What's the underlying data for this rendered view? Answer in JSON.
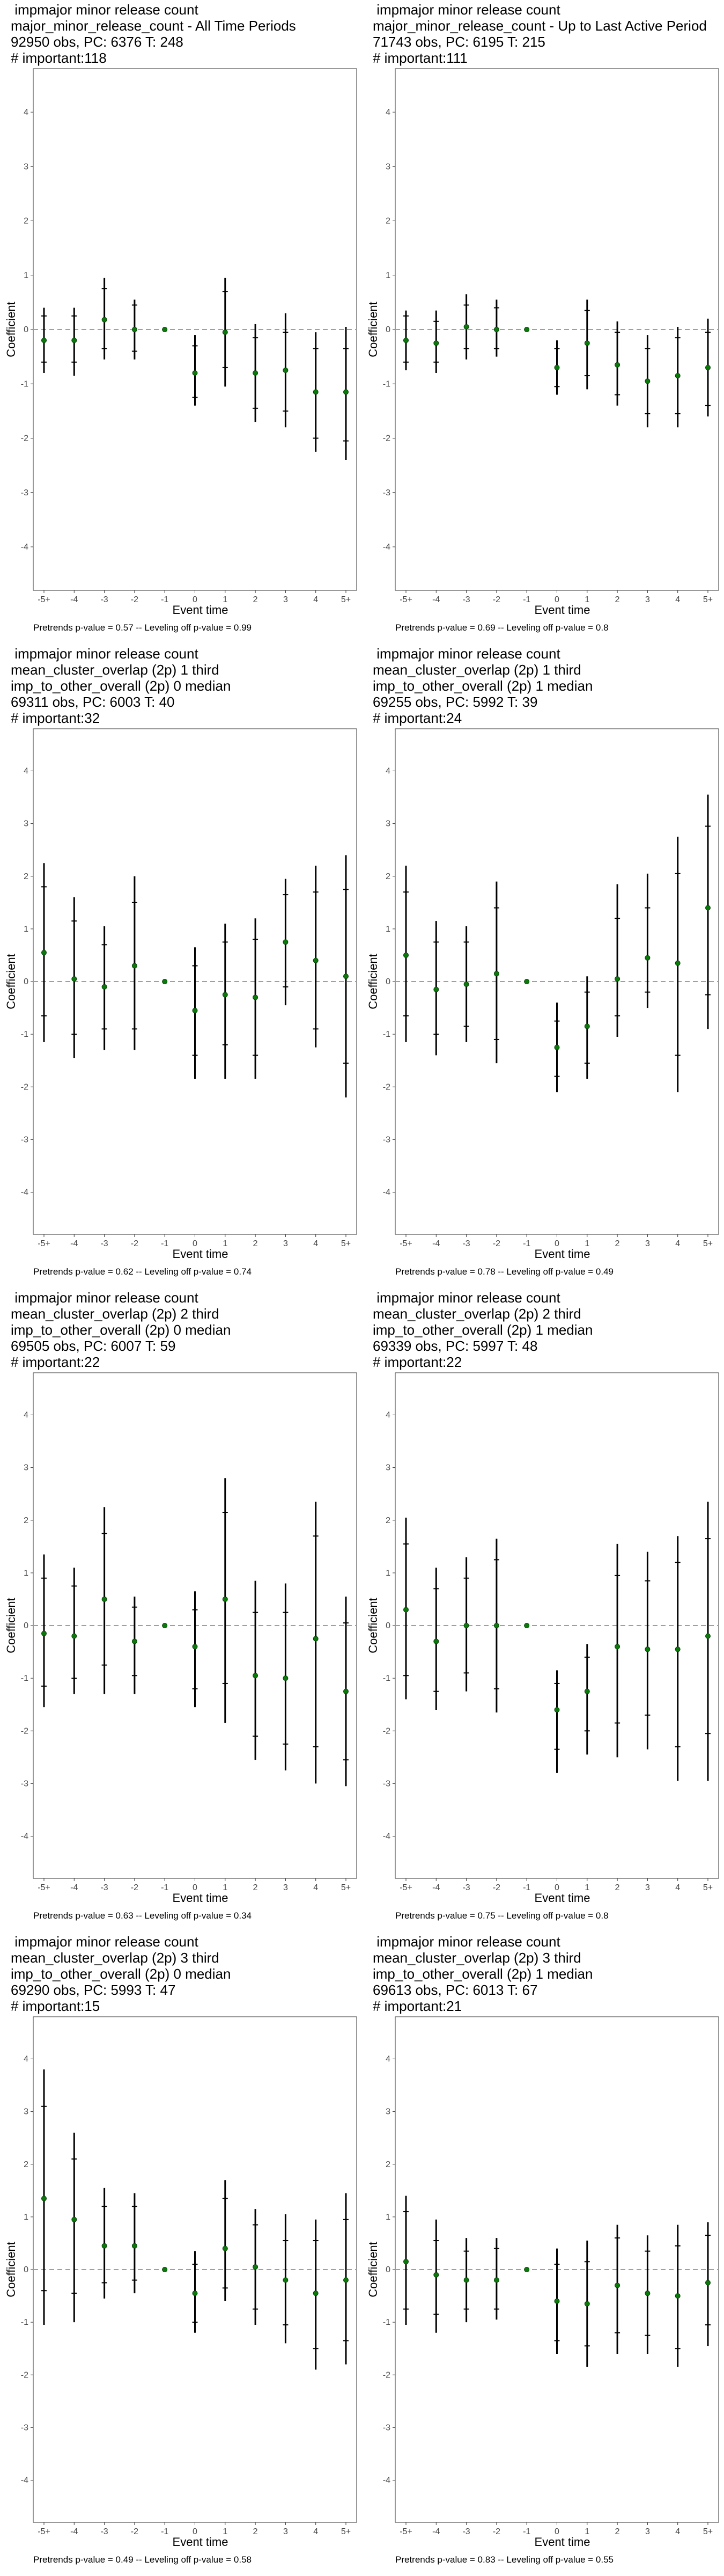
{
  "footer_template": "Pretrends p-value = {pre} -- Leveling off p-value = {lev}",
  "chart_data": [
    {
      "type": "scatter",
      "title_lines": [
        " impmajor minor release count",
        "major_minor_release_count - All Time Periods",
        "92950 obs, PC: 6376 T: 248",
        "# important:118"
      ],
      "xlabel": "Event time",
      "ylabel": "Coefficient",
      "categories": [
        "-5+",
        "-4",
        "-3",
        "-2",
        "-1",
        "0",
        "1",
        "2",
        "3",
        "4",
        "5+"
      ],
      "yticks": [
        -4,
        -3,
        -2,
        -1,
        0,
        1,
        2,
        3,
        4
      ],
      "ylim": [
        -4.8,
        4.8
      ],
      "estimate": [
        -0.2,
        -0.2,
        0.18,
        0.0,
        0.0,
        -0.8,
        -0.05,
        -0.8,
        -0.75,
        -1.15,
        -1.15
      ],
      "ci_outer": [
        [
          -0.8,
          0.4
        ],
        [
          -0.85,
          0.4
        ],
        [
          -0.55,
          0.95
        ],
        [
          -0.55,
          0.55
        ],
        [
          0.0,
          0.0
        ],
        [
          -1.4,
          -0.1
        ],
        [
          -1.05,
          0.95
        ],
        [
          -1.7,
          0.1
        ],
        [
          -1.8,
          0.3
        ],
        [
          -2.25,
          -0.05
        ],
        [
          -2.4,
          0.05
        ]
      ],
      "ci_inner": [
        [
          -0.6,
          0.25
        ],
        [
          -0.6,
          0.25
        ],
        [
          -0.35,
          0.75
        ],
        [
          -0.4,
          0.45
        ],
        [
          0.0,
          0.0
        ],
        [
          -1.25,
          -0.3
        ],
        [
          -0.7,
          0.7
        ],
        [
          -1.45,
          -0.15
        ],
        [
          -1.5,
          -0.05
        ],
        [
          -2.0,
          -0.35
        ],
        [
          -2.05,
          -0.35
        ]
      ],
      "pretrends_p": "0.57",
      "leveling_p": "0.99"
    },
    {
      "type": "scatter",
      "title_lines": [
        " impmajor minor release count",
        "major_minor_release_count - Up to Last Active Period",
        "71743 obs, PC: 6195 T: 215",
        "# important:111"
      ],
      "xlabel": "Event time",
      "ylabel": "Coefficient",
      "categories": [
        "-5+",
        "-4",
        "-3",
        "-2",
        "-1",
        "0",
        "1",
        "2",
        "3",
        "4",
        "5+"
      ],
      "yticks": [
        -4,
        -3,
        -2,
        -1,
        0,
        1,
        2,
        3,
        4
      ],
      "ylim": [
        -4.8,
        4.8
      ],
      "estimate": [
        -0.2,
        -0.25,
        0.05,
        0.0,
        0.0,
        -0.7,
        -0.25,
        -0.65,
        -0.95,
        -0.85,
        -0.7
      ],
      "ci_outer": [
        [
          -0.75,
          0.35
        ],
        [
          -0.8,
          0.35
        ],
        [
          -0.55,
          0.65
        ],
        [
          -0.5,
          0.55
        ],
        [
          0.0,
          0.0
        ],
        [
          -1.2,
          -0.2
        ],
        [
          -1.1,
          0.55
        ],
        [
          -1.4,
          0.15
        ],
        [
          -1.8,
          -0.1
        ],
        [
          -1.8,
          0.05
        ],
        [
          -1.6,
          0.2
        ]
      ],
      "ci_inner": [
        [
          -0.6,
          0.25
        ],
        [
          -0.6,
          0.15
        ],
        [
          -0.35,
          0.45
        ],
        [
          -0.35,
          0.4
        ],
        [
          0.0,
          0.0
        ],
        [
          -1.05,
          -0.35
        ],
        [
          -0.85,
          0.35
        ],
        [
          -1.2,
          -0.05
        ],
        [
          -1.55,
          -0.35
        ],
        [
          -1.55,
          -0.15
        ],
        [
          -1.4,
          -0.05
        ]
      ],
      "pretrends_p": "0.69",
      "leveling_p": "0.8"
    },
    {
      "type": "scatter",
      "title_lines": [
        " impmajor minor release count",
        "mean_cluster_overlap (2p) 1 third",
        "imp_to_other_overall (2p) 0 median",
        "69311 obs, PC: 6003 T: 40",
        "# important:32"
      ],
      "xlabel": "Event time",
      "ylabel": "Coefficient",
      "categories": [
        "-5+",
        "-4",
        "-3",
        "-2",
        "-1",
        "0",
        "1",
        "2",
        "3",
        "4",
        "5+"
      ],
      "yticks": [
        -4,
        -3,
        -2,
        -1,
        0,
        1,
        2,
        3,
        4
      ],
      "ylim": [
        -4.8,
        4.8
      ],
      "estimate": [
        0.55,
        0.05,
        -0.1,
        0.3,
        0.0,
        -0.55,
        -0.25,
        -0.3,
        0.75,
        0.4,
        0.1
      ],
      "ci_outer": [
        [
          -1.15,
          2.25
        ],
        [
          -1.45,
          1.6
        ],
        [
          -1.3,
          1.05
        ],
        [
          -1.3,
          2.0
        ],
        [
          0.0,
          0.0
        ],
        [
          -1.85,
          0.65
        ],
        [
          -1.85,
          1.1
        ],
        [
          -1.85,
          1.2
        ],
        [
          -0.45,
          1.95
        ],
        [
          -1.25,
          2.2
        ],
        [
          -2.2,
          2.4
        ]
      ],
      "ci_inner": [
        [
          -0.65,
          1.8
        ],
        [
          -1.0,
          1.15
        ],
        [
          -0.9,
          0.7
        ],
        [
          -0.9,
          1.5
        ],
        [
          0.0,
          0.0
        ],
        [
          -1.4,
          0.3
        ],
        [
          -1.2,
          0.75
        ],
        [
          -1.4,
          0.8
        ],
        [
          -0.1,
          1.65
        ],
        [
          -0.9,
          1.7
        ],
        [
          -1.55,
          1.75
        ]
      ],
      "pretrends_p": "0.62",
      "leveling_p": "0.74"
    },
    {
      "type": "scatter",
      "title_lines": [
        " impmajor minor release count",
        "mean_cluster_overlap (2p) 1 third",
        "imp_to_other_overall (2p) 1 median",
        "69255 obs, PC: 5992 T: 39",
        "# important:24"
      ],
      "xlabel": "Event time",
      "ylabel": "Coefficient",
      "categories": [
        "-5+",
        "-4",
        "-3",
        "-2",
        "-1",
        "0",
        "1",
        "2",
        "3",
        "4",
        "5+"
      ],
      "yticks": [
        -4,
        -3,
        -2,
        -1,
        0,
        1,
        2,
        3,
        4
      ],
      "ylim": [
        -4.8,
        4.8
      ],
      "estimate": [
        0.5,
        -0.15,
        -0.05,
        0.15,
        0.0,
        -1.25,
        -0.85,
        0.05,
        0.45,
        0.35,
        1.4
      ],
      "ci_outer": [
        [
          -1.15,
          2.2
        ],
        [
          -1.4,
          1.15
        ],
        [
          -1.15,
          1.05
        ],
        [
          -1.55,
          1.9
        ],
        [
          0.0,
          0.0
        ],
        [
          -2.1,
          -0.4
        ],
        [
          -1.85,
          0.1
        ],
        [
          -1.05,
          1.85
        ],
        [
          -0.5,
          2.05
        ],
        [
          -2.1,
          2.75
        ],
        [
          -0.9,
          3.55
        ]
      ],
      "ci_inner": [
        [
          -0.65,
          1.7
        ],
        [
          -1.0,
          0.75
        ],
        [
          -0.85,
          0.75
        ],
        [
          -1.1,
          1.4
        ],
        [
          0.0,
          0.0
        ],
        [
          -1.8,
          -0.75
        ],
        [
          -1.55,
          -0.2
        ],
        [
          -0.65,
          1.2
        ],
        [
          -0.2,
          1.4
        ],
        [
          -1.4,
          2.05
        ],
        [
          -0.25,
          2.95
        ]
      ],
      "pretrends_p": "0.78",
      "leveling_p": "0.49"
    },
    {
      "type": "scatter",
      "title_lines": [
        " impmajor minor release count",
        "mean_cluster_overlap (2p) 2 third",
        "imp_to_other_overall (2p) 0 median",
        "69505 obs, PC: 6007 T: 59",
        "# important:22"
      ],
      "xlabel": "Event time",
      "ylabel": "Coefficient",
      "categories": [
        "-5+",
        "-4",
        "-3",
        "-2",
        "-1",
        "0",
        "1",
        "2",
        "3",
        "4",
        "5+"
      ],
      "yticks": [
        -4,
        -3,
        -2,
        -1,
        0,
        1,
        2,
        3,
        4
      ],
      "ylim": [
        -4.8,
        4.8
      ],
      "estimate": [
        -0.15,
        -0.2,
        0.5,
        -0.3,
        0.0,
        -0.4,
        0.5,
        -0.95,
        -1.0,
        -0.25,
        -1.25
      ],
      "ci_outer": [
        [
          -1.55,
          1.35
        ],
        [
          -1.3,
          1.1
        ],
        [
          -1.3,
          2.25
        ],
        [
          -1.3,
          0.55
        ],
        [
          0.0,
          0.0
        ],
        [
          -1.55,
          0.65
        ],
        [
          -1.85,
          2.8
        ],
        [
          -2.55,
          0.85
        ],
        [
          -2.75,
          0.8
        ],
        [
          -3.0,
          2.35
        ],
        [
          -3.05,
          0.55
        ]
      ],
      "ci_inner": [
        [
          -1.15,
          0.9
        ],
        [
          -1.0,
          0.75
        ],
        [
          -0.75,
          1.75
        ],
        [
          -0.95,
          0.35
        ],
        [
          0.0,
          0.0
        ],
        [
          -1.2,
          0.3
        ],
        [
          -1.1,
          2.15
        ],
        [
          -2.1,
          0.25
        ],
        [
          -2.25,
          0.25
        ],
        [
          -2.3,
          1.7
        ],
        [
          -2.55,
          0.05
        ]
      ],
      "pretrends_p": "0.63",
      "leveling_p": "0.34"
    },
    {
      "type": "scatter",
      "title_lines": [
        " impmajor minor release count",
        "mean_cluster_overlap (2p) 2 third",
        "imp_to_other_overall (2p) 1 median",
        "69339 obs, PC: 5997 T: 48",
        "# important:22"
      ],
      "xlabel": "Event time",
      "ylabel": "Coefficient",
      "categories": [
        "-5+",
        "-4",
        "-3",
        "-2",
        "-1",
        "0",
        "1",
        "2",
        "3",
        "4",
        "5+"
      ],
      "yticks": [
        -4,
        -3,
        -2,
        -1,
        0,
        1,
        2,
        3,
        4
      ],
      "ylim": [
        -4.8,
        4.8
      ],
      "estimate": [
        0.3,
        -0.3,
        0.0,
        0.0,
        0.0,
        -1.6,
        -1.25,
        -0.4,
        -0.45,
        -0.45,
        -0.2
      ],
      "ci_outer": [
        [
          -1.4,
          2.05
        ],
        [
          -1.6,
          1.1
        ],
        [
          -1.25,
          1.3
        ],
        [
          -1.65,
          1.65
        ],
        [
          0.0,
          0.0
        ],
        [
          -2.8,
          -0.85
        ],
        [
          -2.45,
          -0.35
        ],
        [
          -2.5,
          1.55
        ],
        [
          -2.35,
          1.4
        ],
        [
          -2.95,
          1.7
        ],
        [
          -2.95,
          2.35
        ]
      ],
      "ci_inner": [
        [
          -0.95,
          1.55
        ],
        [
          -1.25,
          0.7
        ],
        [
          -0.9,
          0.9
        ],
        [
          -1.2,
          1.25
        ],
        [
          0.0,
          0.0
        ],
        [
          -2.35,
          -1.1
        ],
        [
          -2.0,
          -0.6
        ],
        [
          -1.85,
          0.95
        ],
        [
          -1.7,
          0.85
        ],
        [
          -2.3,
          1.2
        ],
        [
          -2.05,
          1.65
        ]
      ],
      "pretrends_p": "0.75",
      "leveling_p": "0.8"
    },
    {
      "type": "scatter",
      "title_lines": [
        " impmajor minor release count",
        "mean_cluster_overlap (2p) 3 third",
        "imp_to_other_overall (2p) 0 median",
        "69290 obs, PC: 5993 T: 47",
        "# important:15"
      ],
      "xlabel": "Event time",
      "ylabel": "Coefficient",
      "categories": [
        "-5+",
        "-4",
        "-3",
        "-2",
        "-1",
        "0",
        "1",
        "2",
        "3",
        "4",
        "5+"
      ],
      "yticks": [
        -4,
        -3,
        -2,
        -1,
        0,
        1,
        2,
        3,
        4
      ],
      "ylim": [
        -4.8,
        4.8
      ],
      "estimate": [
        1.35,
        0.95,
        0.45,
        0.45,
        0.0,
        -0.45,
        0.4,
        0.05,
        -0.2,
        -0.45,
        -0.2
      ],
      "ci_outer": [
        [
          -1.05,
          3.8
        ],
        [
          -1.0,
          2.6
        ],
        [
          -0.55,
          1.55
        ],
        [
          -0.45,
          1.45
        ],
        [
          0.0,
          0.0
        ],
        [
          -1.2,
          0.35
        ],
        [
          -0.6,
          1.7
        ],
        [
          -1.05,
          1.15
        ],
        [
          -1.4,
          1.05
        ],
        [
          -1.9,
          0.95
        ],
        [
          -1.8,
          1.45
        ]
      ],
      "ci_inner": [
        [
          -0.4,
          3.1
        ],
        [
          -0.45,
          2.1
        ],
        [
          -0.25,
          1.2
        ],
        [
          -0.2,
          1.2
        ],
        [
          0.0,
          0.0
        ],
        [
          -1.0,
          0.1
        ],
        [
          -0.35,
          1.35
        ],
        [
          -0.75,
          0.85
        ],
        [
          -1.05,
          0.55
        ],
        [
          -1.5,
          0.55
        ],
        [
          -1.35,
          0.95
        ]
      ],
      "pretrends_p": "0.49",
      "leveling_p": "0.58"
    },
    {
      "type": "scatter",
      "title_lines": [
        " impmajor minor release count",
        "mean_cluster_overlap (2p) 3 third",
        "imp_to_other_overall (2p) 1 median",
        "69613 obs, PC: 6013 T: 67",
        "# important:21"
      ],
      "xlabel": "Event time",
      "ylabel": "Coefficient",
      "categories": [
        "-5+",
        "-4",
        "-3",
        "-2",
        "-1",
        "0",
        "1",
        "2",
        "3",
        "4",
        "5+"
      ],
      "yticks": [
        -4,
        -3,
        -2,
        -1,
        0,
        1,
        2,
        3,
        4
      ],
      "ylim": [
        -4.8,
        4.8
      ],
      "estimate": [
        0.15,
        -0.1,
        -0.2,
        -0.2,
        0.0,
        -0.6,
        -0.65,
        -0.3,
        -0.45,
        -0.5,
        -0.25
      ],
      "ci_outer": [
        [
          -1.05,
          1.4
        ],
        [
          -1.2,
          0.95
        ],
        [
          -1.0,
          0.6
        ],
        [
          -0.95,
          0.6
        ],
        [
          0.0,
          0.0
        ],
        [
          -1.6,
          0.4
        ],
        [
          -1.85,
          0.55
        ],
        [
          -1.6,
          0.85
        ],
        [
          -1.6,
          0.65
        ],
        [
          -1.85,
          0.85
        ],
        [
          -1.45,
          0.9
        ]
      ],
      "ci_inner": [
        [
          -0.75,
          1.1
        ],
        [
          -0.85,
          0.55
        ],
        [
          -0.75,
          0.35
        ],
        [
          -0.75,
          0.4
        ],
        [
          0.0,
          0.0
        ],
        [
          -1.35,
          0.1
        ],
        [
          -1.45,
          0.15
        ],
        [
          -1.2,
          0.6
        ],
        [
          -1.25,
          0.35
        ],
        [
          -1.5,
          0.45
        ],
        [
          -1.05,
          0.65
        ]
      ],
      "pretrends_p": "0.83",
      "leveling_p": "0.55"
    }
  ]
}
